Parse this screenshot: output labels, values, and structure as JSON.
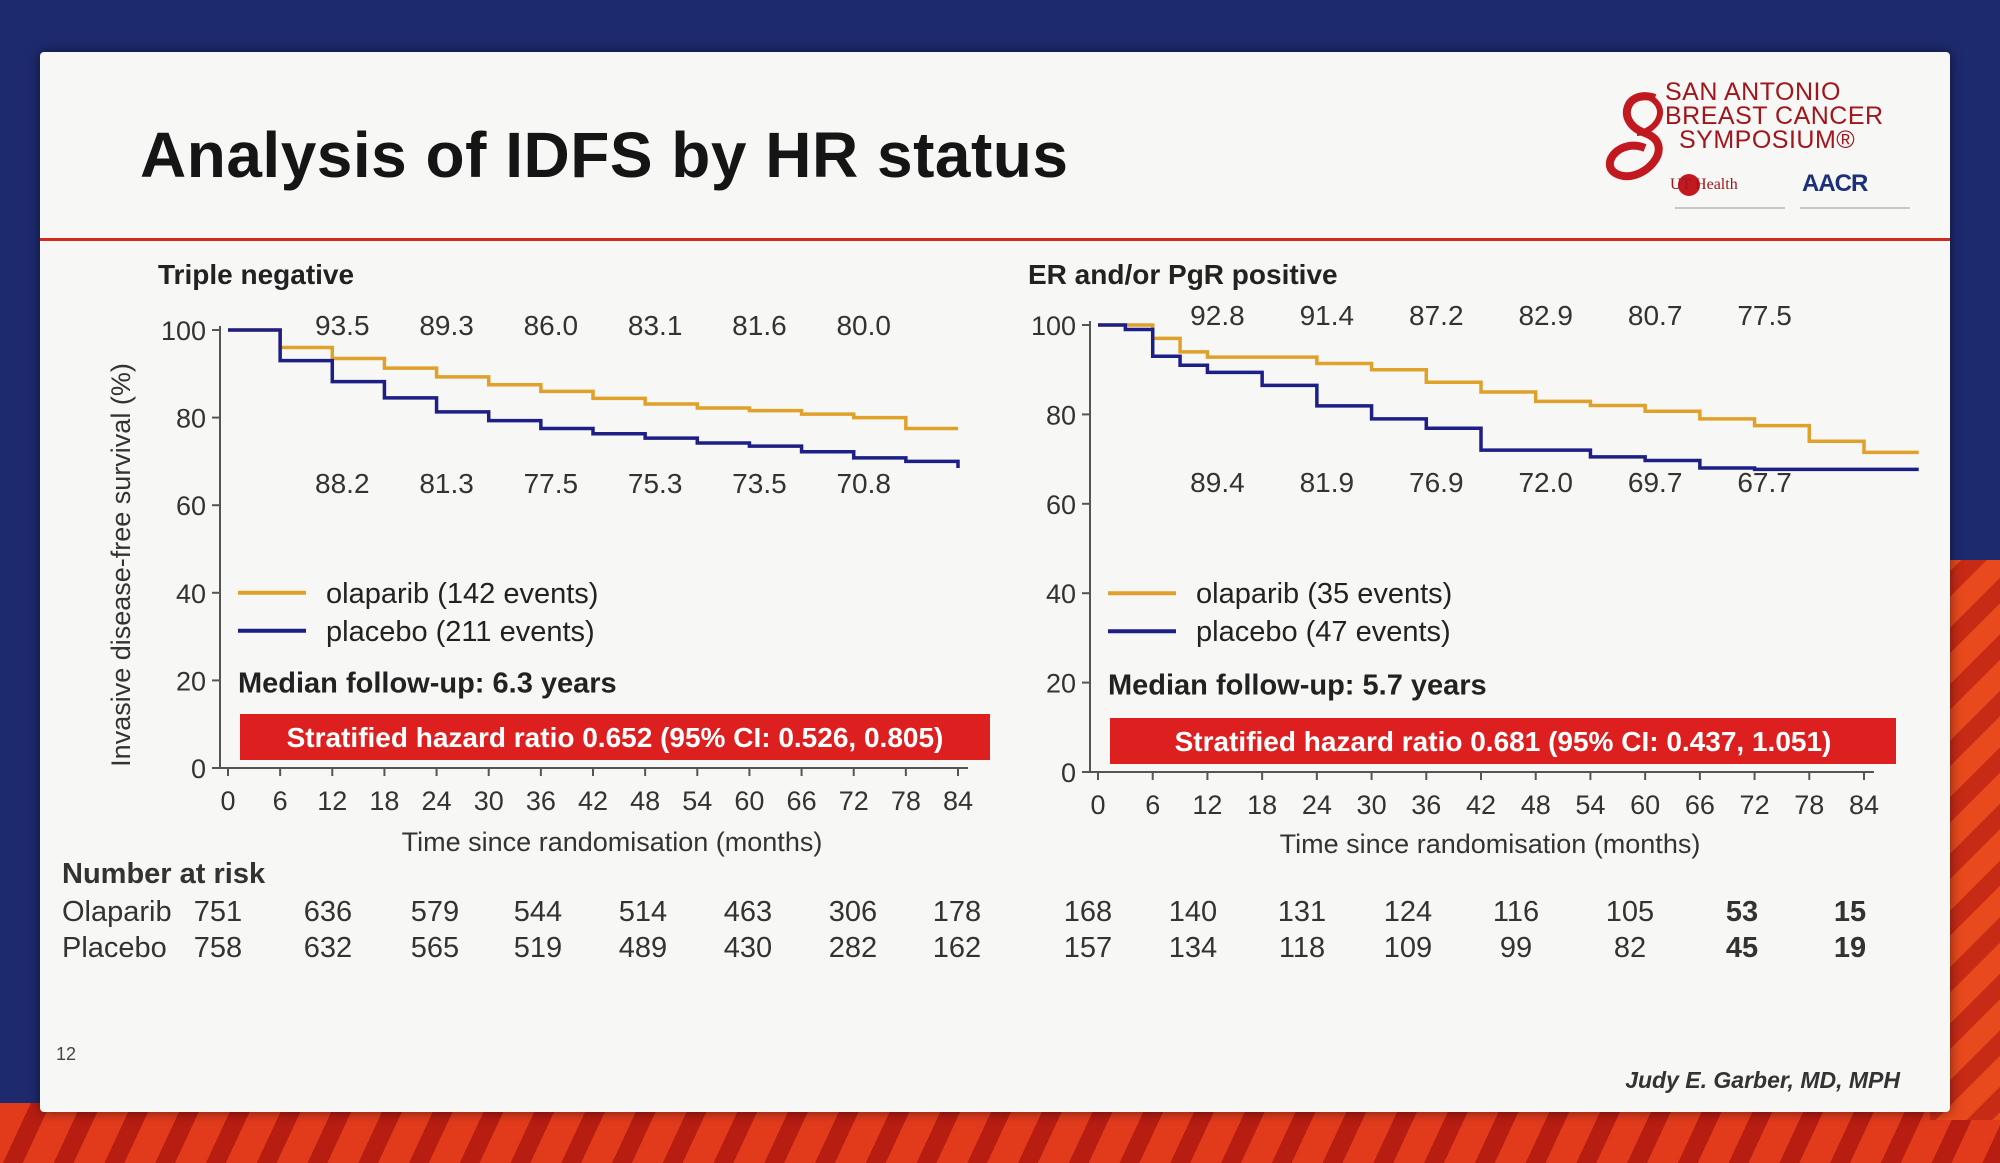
{
  "slide": {
    "title": "Analysis of IDFS by HR status",
    "page_number": "12",
    "author": "Judy E. Garber, MD, MPH",
    "logo": {
      "lines": [
        "SAN ANTONIO",
        "BREAST CANCER",
        "SYMPOSIUM®"
      ],
      "sub_left": "UT Health",
      "sub_right": "AACR"
    }
  },
  "colors": {
    "olaparib": "#e0a12a",
    "placebo": "#1e1f86",
    "accent": "#d32a20"
  },
  "shared": {
    "ylabel": "Invasive disease-free survival (%)",
    "xlabel": "Time since randomisation (months)",
    "number_at_risk_label": "Number at risk",
    "risk_row_labels": [
      "Olaparib",
      "Placebo"
    ]
  },
  "chart_data": [
    {
      "type": "line",
      "title": "Triple negative",
      "xlabel": "Time since randomisation (months)",
      "ylabel": "Invasive disease-free survival (%)",
      "xlim": [
        0,
        84
      ],
      "ylim": [
        0,
        100
      ],
      "xticks": [
        "0",
        "6",
        "12",
        "18",
        "24",
        "30",
        "36",
        "42",
        "48",
        "54",
        "60",
        "66",
        "72",
        "78",
        "84"
      ],
      "yticks": [
        "0",
        "20",
        "40",
        "60",
        "80",
        "100"
      ],
      "series": [
        {
          "name": "olaparib (142 events)",
          "x": [
            0,
            6,
            12,
            18,
            24,
            30,
            36,
            42,
            48,
            54,
            60,
            66,
            72,
            78,
            84
          ],
          "y": [
            100,
            96,
            93.5,
            91.3,
            89.3,
            87.5,
            86.0,
            84.4,
            83.1,
            82.2,
            81.6,
            80.8,
            80.0,
            77.5,
            77.5
          ]
        },
        {
          "name": "placebo (211 events)",
          "x": [
            0,
            6,
            12,
            18,
            24,
            30,
            36,
            42,
            48,
            54,
            60,
            66,
            72,
            78,
            84
          ],
          "y": [
            100,
            93,
            88.2,
            84.5,
            81.3,
            79.3,
            77.5,
            76.3,
            75.3,
            74.2,
            73.5,
            72.2,
            70.8,
            70.0,
            68.5
          ]
        }
      ],
      "annotations_upper": [
        "93.5",
        "89.3",
        "86.0",
        "83.1",
        "81.6",
        "80.0"
      ],
      "annotations_lower": [
        "88.2",
        "81.3",
        "77.5",
        "75.3",
        "73.5",
        "70.8"
      ],
      "median_followup": "Median follow-up: 6.3 years",
      "hazard_ratio": "Stratified hazard ratio 0.652 (95% CI: 0.526, 0.805)",
      "at_risk": {
        "olaparib": [
          "751",
          "636",
          "579",
          "544",
          "514",
          "463",
          "306",
          "178"
        ],
        "placebo": [
          "758",
          "632",
          "565",
          "519",
          "489",
          "430",
          "282",
          "162"
        ]
      }
    },
    {
      "type": "line",
      "title": "ER and/or PgR positive",
      "xlabel": "Time since randomisation (months)",
      "xlim": [
        0,
        84
      ],
      "ylim": [
        0,
        100
      ],
      "xticks": [
        "0",
        "6",
        "12",
        "18",
        "24",
        "30",
        "36",
        "42",
        "48",
        "54",
        "60",
        "66",
        "72",
        "78",
        "84"
      ],
      "yticks": [
        "0",
        "20",
        "40",
        "60",
        "80",
        "100"
      ],
      "series": [
        {
          "name": "olaparib (35 events)",
          "x": [
            0,
            3,
            6,
            9,
            12,
            18,
            24,
            30,
            36,
            42,
            48,
            54,
            60,
            66,
            72,
            78,
            84,
            90
          ],
          "y": [
            100,
            100,
            97,
            94,
            92.8,
            92.8,
            91.4,
            90.0,
            87.2,
            85.0,
            82.9,
            82.0,
            80.7,
            79.0,
            77.5,
            74.0,
            71.5,
            71.5
          ]
        },
        {
          "name": "placebo (47 events)",
          "x": [
            0,
            3,
            6,
            9,
            12,
            18,
            24,
            30,
            36,
            42,
            48,
            54,
            60,
            66,
            72,
            78,
            84,
            90
          ],
          "y": [
            100,
            99,
            93,
            91,
            89.4,
            86.5,
            81.9,
            79.0,
            76.9,
            72.0,
            72.0,
            70.5,
            69.7,
            68.0,
            67.7,
            67.7,
            67.7,
            67.7
          ]
        }
      ],
      "annotations_upper": [
        "92.8",
        "91.4",
        "87.2",
        "82.9",
        "80.7",
        "77.5"
      ],
      "annotations_lower": [
        "89.4",
        "81.9",
        "76.9",
        "72.0",
        "69.7",
        "67.7"
      ],
      "median_followup": "Median follow-up: 5.7 years",
      "hazard_ratio": "Stratified hazard ratio 0.681 (95% CI: 0.437, 1.051)",
      "at_risk": {
        "olaparib": [
          "168",
          "140",
          "131",
          "124",
          "116",
          "105",
          "53",
          "15"
        ],
        "placebo": [
          "157",
          "134",
          "118",
          "109",
          "99",
          "82",
          "45",
          "19"
        ]
      }
    }
  ]
}
